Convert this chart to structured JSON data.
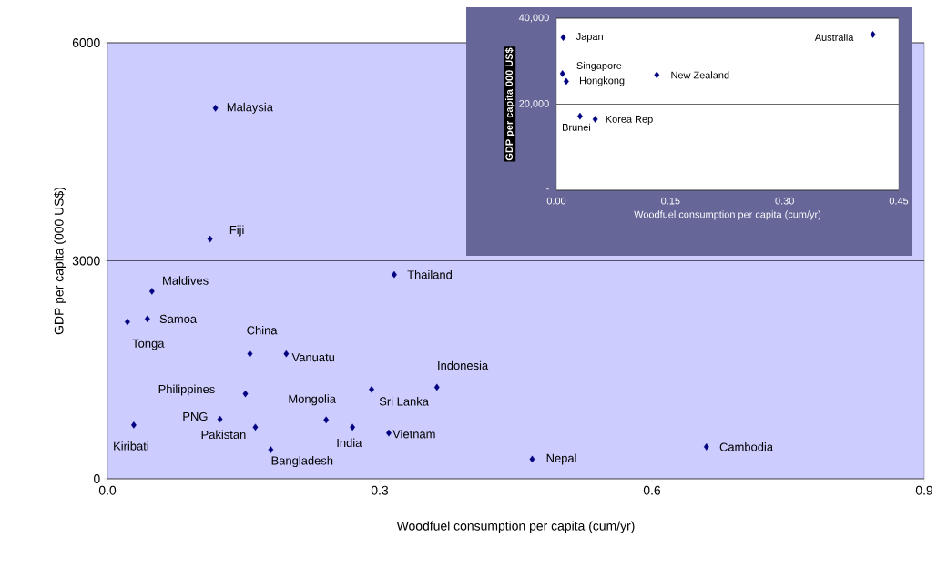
{
  "chart_data": [
    {
      "type": "scatter",
      "xlabel": "Woodfuel consumption per capita (cum/yr)",
      "ylabel": "GDP per capita (000 US$)",
      "color": "#000080",
      "marker": "diamond",
      "grid": "y",
      "xlim": [
        0,
        0.9
      ],
      "xticks": [
        {
          "value": 0,
          "label": "0.0"
        },
        {
          "value": 0.3,
          "label": "0.3"
        },
        {
          "value": 0.6,
          "label": "0.6"
        },
        {
          "value": 0.9,
          "label": "0.9"
        }
      ],
      "ylim": [
        0,
        6000
      ],
      "yticks": [
        0,
        3000,
        6000
      ],
      "x": [
        0.119,
        0.113,
        0.316,
        0.049,
        0.044,
        0.022,
        0.157,
        0.197,
        0.152,
        0.291,
        0.363,
        0.124,
        0.241,
        0.029,
        0.163,
        0.27,
        0.31,
        0.18,
        0.468,
        0.66
      ],
      "values": [
        5100,
        3300,
        2810,
        2580,
        2200,
        2160,
        1720,
        1720,
        1170,
        1230,
        1260,
        820,
        810,
        740,
        710,
        710,
        630,
        400,
        270,
        440
      ],
      "annotations": [
        {
          "text": "Malaysia",
          "x": 0.119,
          "y": 5100
        },
        {
          "text": "Fiji",
          "x": 0.113,
          "y": 3300
        },
        {
          "text": "Thailand",
          "x": 0.316,
          "y": 2810
        },
        {
          "text": "Maldives",
          "x": 0.049,
          "y": 2580
        },
        {
          "text": "Samoa",
          "x": 0.044,
          "y": 2200
        },
        {
          "text": "Tonga",
          "x": 0.022,
          "y": 2160
        },
        {
          "text": "China",
          "x": 0.157,
          "y": 1720
        },
        {
          "text": "Vanuatu",
          "x": 0.197,
          "y": 1720
        },
        {
          "text": "Philippines",
          "x": 0.152,
          "y": 1170
        },
        {
          "text": "Sri Lanka",
          "x": 0.291,
          "y": 1230
        },
        {
          "text": "Indonesia",
          "x": 0.363,
          "y": 1260
        },
        {
          "text": "PNG",
          "x": 0.124,
          "y": 820
        },
        {
          "text": "Mongolia",
          "x": 0.241,
          "y": 810
        },
        {
          "text": "Kiribati",
          "x": 0.029,
          "y": 740
        },
        {
          "text": "Pakistan",
          "x": 0.163,
          "y": 710
        },
        {
          "text": "India",
          "x": 0.27,
          "y": 710
        },
        {
          "text": "Vietnam",
          "x": 0.31,
          "y": 630
        },
        {
          "text": "Bangladesh",
          "x": 0.18,
          "y": 400
        },
        {
          "text": "Nepal",
          "x": 0.468,
          "y": 270
        },
        {
          "text": "Cambodia",
          "x": 0.66,
          "y": 440
        }
      ]
    },
    {
      "type": "scatter",
      "xlabel": "Woodfuel consumption per capita (cum/yr)",
      "ylabel": "GDP per capita 000 US$",
      "color": "#000080",
      "marker": "diamond",
      "grid": "y",
      "xlim": [
        0,
        0.45
      ],
      "xticks": [
        {
          "value": 0,
          "label": "0.00"
        },
        {
          "value": 0.15,
          "label": "0.15"
        },
        {
          "value": 0.3,
          "label": "0.30"
        },
        {
          "value": 0.45,
          "label": "0.45"
        }
      ],
      "ylim": [
        0,
        40000
      ],
      "yticks": [
        {
          "value": 0,
          "label": "-"
        },
        {
          "value": 20000,
          "label": "20,000"
        },
        {
          "value": 40000,
          "label": "40,000"
        }
      ],
      "x": [
        0.009,
        0.416,
        0.008,
        0.013,
        0.132,
        0.031,
        0.051
      ],
      "values": [
        35500,
        36200,
        27100,
        25300,
        26800,
        17200,
        16500
      ],
      "annotations": [
        {
          "text": "Japan",
          "x": 0.009,
          "y": 35500
        },
        {
          "text": "Australia",
          "x": 0.416,
          "y": 36200
        },
        {
          "text": "Singapore",
          "x": 0.008,
          "y": 27100
        },
        {
          "text": "Hongkong",
          "x": 0.013,
          "y": 25300
        },
        {
          "text": "New Zealand",
          "x": 0.132,
          "y": 26800
        },
        {
          "text": "Brunei",
          "x": 0.031,
          "y": 17200
        },
        {
          "text": "Korea Rep",
          "x": 0.051,
          "y": 16500
        }
      ]
    }
  ]
}
